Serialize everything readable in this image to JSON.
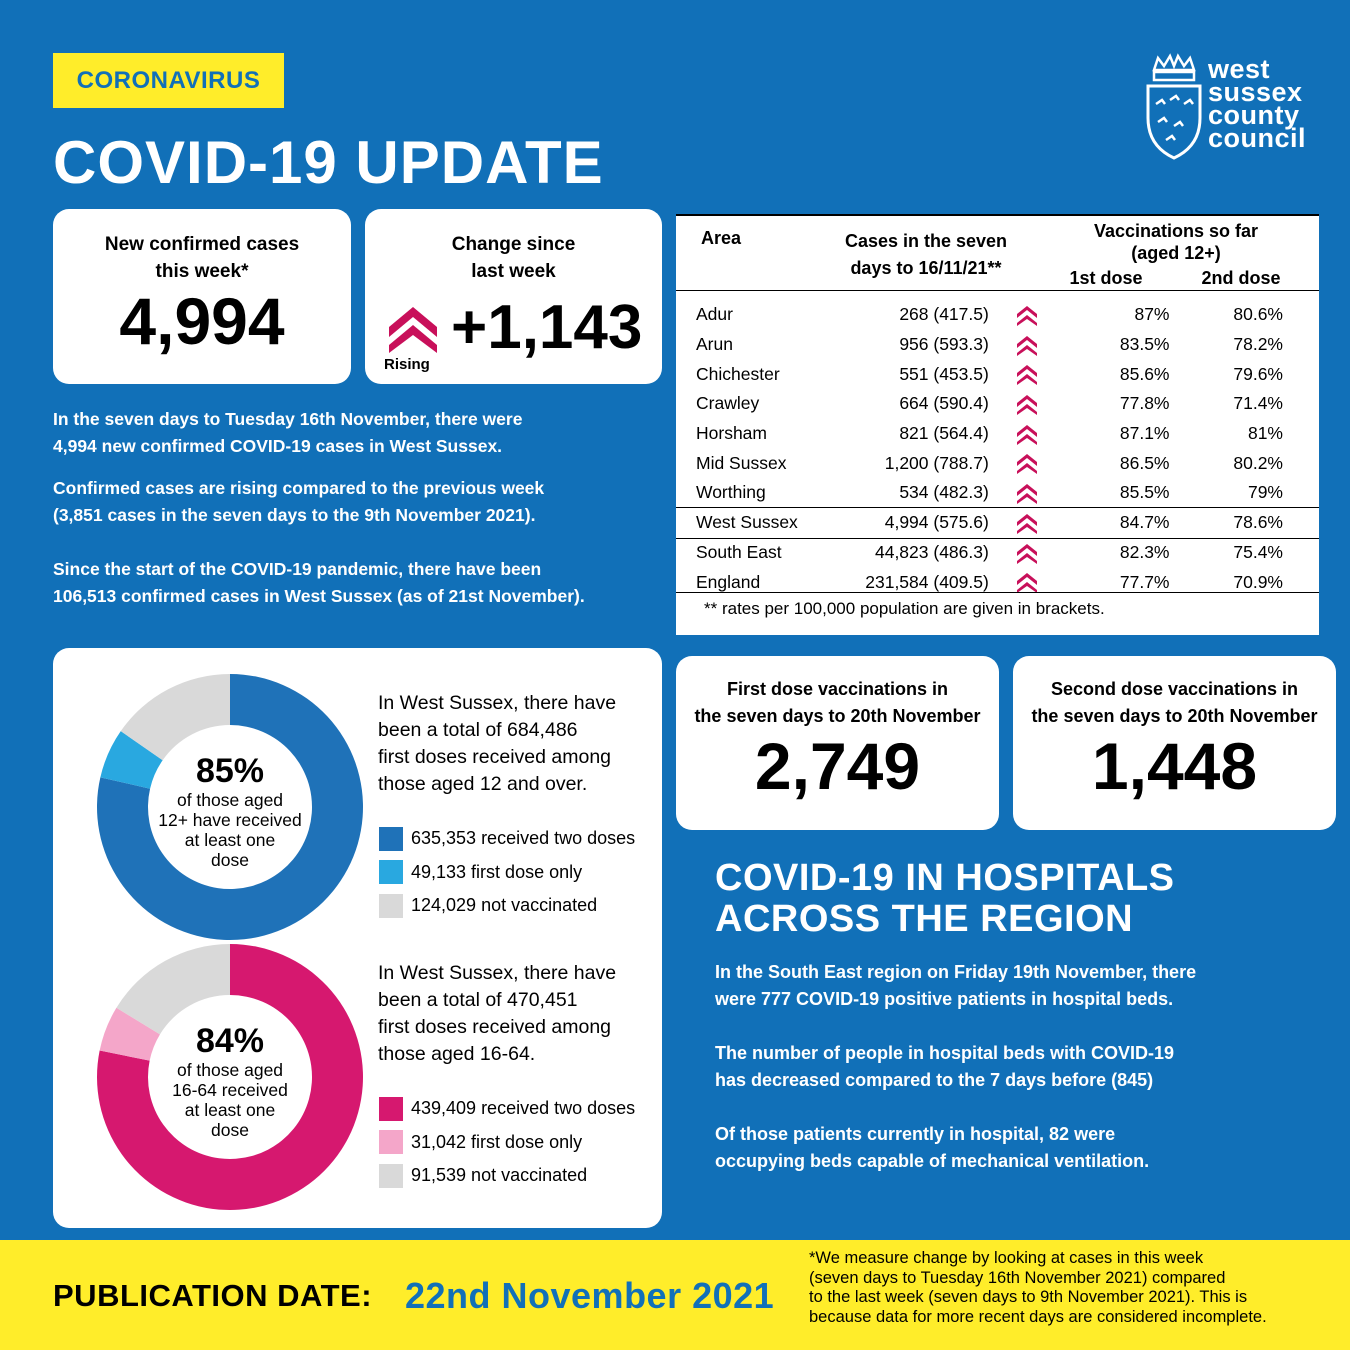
{
  "header": {
    "tag": "CORONAVIRUS",
    "title": "COVID-19 UPDATE",
    "logo_lines": [
      "west",
      "sussex",
      "county",
      "council"
    ]
  },
  "cases_card": {
    "label_line1": "New confirmed cases",
    "label_line2": "this week*",
    "value": "4,994"
  },
  "change_card": {
    "label_line1": "Change since",
    "label_line2": "last week",
    "value": "+1,143",
    "trend": "Rising"
  },
  "summary": {
    "p1_line1": "In the seven days to Tuesday 16th November,  there were",
    "p1_line2": "4,994 new confirmed COVID-19 cases in West Sussex.",
    "p2_line1": "Confirmed cases are rising compared to the previous week",
    "p2_line2": "(3,851 cases in the seven days to the 9th November 2021).",
    "p3_line1": "Since the start of the COVID-19 pandemic, there have been",
    "p3_line2": "106,513 confirmed cases in West Sussex (as of 21st November)."
  },
  "table": {
    "col_area": "Area",
    "col_cases_line1": "Cases in the seven",
    "col_cases_line2": "days to 16/11/21**",
    "col_vacc_line1": "Vaccinations so far",
    "col_vacc_line2": "(aged 12+)",
    "col_dose1": "1st dose",
    "col_dose2": "2nd dose",
    "rows": [
      {
        "area": "Adur",
        "cases": "268 (417.5)",
        "dose1": "87%",
        "dose2": "80.6%"
      },
      {
        "area": "Arun",
        "cases": "956 (593.3)",
        "dose1": "83.5%",
        "dose2": "78.2%"
      },
      {
        "area": "Chichester",
        "cases": "551 (453.5)",
        "dose1": "85.6%",
        "dose2": "79.6%"
      },
      {
        "area": "Crawley",
        "cases": "664 (590.4)",
        "dose1": "77.8%",
        "dose2": "71.4%"
      },
      {
        "area": "Horsham",
        "cases": "821 (564.4)",
        "dose1": "87.1%",
        "dose2": "81%"
      },
      {
        "area": "Mid Sussex",
        "cases": "1,200 (788.7)",
        "dose1": "86.5%",
        "dose2": "80.2%"
      },
      {
        "area": "Worthing",
        "cases": "534 (482.3)",
        "dose1": "85.5%",
        "dose2": "79%"
      },
      {
        "area": "West Sussex",
        "cases": "4,994 (575.6)",
        "dose1": "84.7%",
        "dose2": "78.6%"
      },
      {
        "area": "South East",
        "cases": "44,823 (486.3)",
        "dose1": "82.3%",
        "dose2": "75.4%"
      },
      {
        "area": "England",
        "cases": "231,584 (409.5)",
        "dose1": "77.7%",
        "dose2": "70.9%"
      }
    ],
    "footnote": "** rates per 100,000 population are given in brackets."
  },
  "donut1": {
    "pct": "85%",
    "center_lines": [
      "of those aged",
      "12+ have received",
      "at least one",
      "dose"
    ],
    "desc_lines": [
      "In West Sussex, there have",
      "been a total of 684,486",
      "first doses received among",
      "those aged 12 and over."
    ],
    "legend": [
      "635,353 received two doses",
      "49,133 first dose only",
      "124,029 not vaccinated"
    ],
    "values": [
      635353,
      49133,
      124029
    ],
    "colors": [
      "#1f72b8",
      "#29a8e0",
      "#d9d9d9"
    ]
  },
  "donut2": {
    "pct": "84%",
    "center_lines": [
      "of those aged",
      "16-64 received",
      "at least one",
      "dose"
    ],
    "desc_lines": [
      "In West Sussex, there have",
      "been a total of 470,451",
      "first doses received among",
      "those aged 16-64."
    ],
    "legend": [
      "439,409 received two doses",
      "31,042 first dose only",
      "91,539 not vaccinated"
    ],
    "values": [
      439409,
      31042,
      91539
    ],
    "colors": [
      "#d6186f",
      "#f4a6c9",
      "#d9d9d9"
    ]
  },
  "first_dose_card": {
    "label_line1": "First dose vaccinations in",
    "label_line2": "the seven days to 20th November",
    "value": "2,749"
  },
  "second_dose_card": {
    "label_line1": "Second dose vaccinations in",
    "label_line2": "the seven days to 20th November",
    "value": "1,448"
  },
  "hospitals": {
    "title_line1": "COVID-19 IN HOSPITALS",
    "title_line2": "ACROSS THE REGION",
    "p1_line1": "In the South East region on Friday 19th November, there",
    "p1_line2": "were 777 COVID-19 positive patients in hospital beds.",
    "p2_line1": "The number of people in hospital beds with COVID-19",
    "p2_line2": "has decreased compared to the 7 days before (845)",
    "p3_line1": "Of those patients currently in hospital, 82 were",
    "p3_line2": "occupying beds capable of mechanical ventilation."
  },
  "footer": {
    "pub_label": "PUBLICATION DATE:",
    "pub_date": "22nd November 2021",
    "note_lines": [
      "*We measure change by looking at cases in this week",
      "(seven days to Tuesday 16th November 2021) compared",
      "to the last week (seven days to 9th November 2021). This is",
      "because data for more recent days are considered incomplete."
    ]
  },
  "colors": {
    "background": "#1170b8",
    "yellow": "#ffed2a",
    "rising_chevron": "#c8105a"
  },
  "icons": {
    "rising": "double-chevron-up-icon",
    "logo": "county-council-crest-icon"
  }
}
